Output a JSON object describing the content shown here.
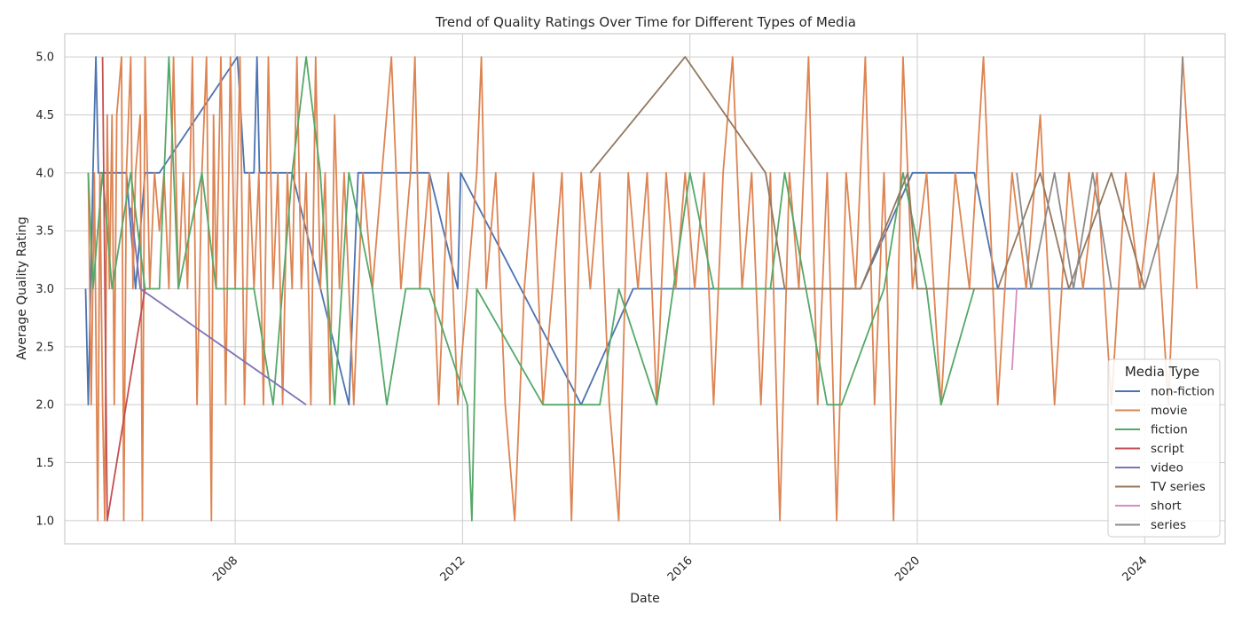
{
  "chart_data": {
    "type": "line",
    "title": "Trend of Quality Ratings Over Time for Different Types of Media",
    "xlabel": "Date",
    "ylabel": "Average Quality Rating",
    "xlim": [
      "2005-01-01",
      "2025-06-01"
    ],
    "ylim": [
      0.8,
      5.2
    ],
    "x_ticks": [
      "2008",
      "2012",
      "2016",
      "2020",
      "2024"
    ],
    "y_ticks": [
      "1.0",
      "1.5",
      "2.0",
      "2.5",
      "3.0",
      "3.5",
      "4.0",
      "4.5",
      "5.0"
    ],
    "grid": true,
    "legend": {
      "title": "Media Type",
      "placement": "bottom-right"
    },
    "series": [
      {
        "name": "non-fiction",
        "color": "#4c72b0",
        "points": [
          [
            "2005-05-15",
            3.0
          ],
          [
            "2005-06-01",
            2.0
          ],
          [
            "2005-07-01",
            4.0
          ],
          [
            "2005-07-20",
            5.0
          ],
          [
            "2005-08-05",
            4.0
          ],
          [
            "2005-11-01",
            4.0
          ],
          [
            "2006-02-01",
            4.0
          ],
          [
            "2006-04-01",
            3.0
          ],
          [
            "2006-06-01",
            4.0
          ],
          [
            "2006-09-01",
            4.0
          ],
          [
            "2008-01-15",
            5.0
          ],
          [
            "2008-03-01",
            4.0
          ],
          [
            "2008-05-01",
            4.0
          ],
          [
            "2008-05-20",
            5.0
          ],
          [
            "2008-06-05",
            4.0
          ],
          [
            "2009-01-01",
            4.0
          ],
          [
            "2010-01-01",
            2.0
          ],
          [
            "2010-03-01",
            4.0
          ],
          [
            "2011-06-01",
            4.0
          ],
          [
            "2011-12-01",
            3.0
          ],
          [
            "2011-12-20",
            4.0
          ],
          [
            "2014-02-01",
            2.0
          ],
          [
            "2015-01-01",
            3.0
          ],
          [
            "2019-01-01",
            3.0
          ],
          [
            "2019-12-01",
            4.0
          ],
          [
            "2020-01-01",
            4.0
          ],
          [
            "2021-01-01",
            4.0
          ],
          [
            "2021-06-01",
            3.0
          ],
          [
            "2024-01-01",
            3.0
          ]
        ]
      },
      {
        "name": "movie",
        "color": "#dd8452",
        "points": [
          [
            "2005-06-01",
            4.0
          ],
          [
            "2005-06-20",
            2.0
          ],
          [
            "2005-07-10",
            4.0
          ],
          [
            "2005-08-01",
            1.0
          ],
          [
            "2005-08-15",
            4.0
          ],
          [
            "2005-09-01",
            2.0
          ],
          [
            "2005-09-15",
            1.0
          ],
          [
            "2005-10-01",
            4.5
          ],
          [
            "2005-10-15",
            3.0
          ],
          [
            "2005-11-01",
            4.5
          ],
          [
            "2005-11-15",
            2.0
          ],
          [
            "2005-12-01",
            4.5
          ],
          [
            "2006-01-01",
            5.0
          ],
          [
            "2006-01-15",
            1.0
          ],
          [
            "2006-02-01",
            4.0
          ],
          [
            "2006-03-01",
            5.0
          ],
          [
            "2006-03-15",
            3.0
          ],
          [
            "2006-04-01",
            4.0
          ],
          [
            "2006-05-01",
            4.5
          ],
          [
            "2006-05-15",
            1.0
          ],
          [
            "2006-06-01",
            5.0
          ],
          [
            "2006-07-01",
            3.0
          ],
          [
            "2006-08-01",
            4.0
          ],
          [
            "2006-09-01",
            3.5
          ],
          [
            "2006-10-01",
            4.0
          ],
          [
            "2006-11-01",
            3.0
          ],
          [
            "2006-12-01",
            5.0
          ],
          [
            "2007-01-01",
            3.0
          ],
          [
            "2007-02-01",
            4.0
          ],
          [
            "2007-03-01",
            3.0
          ],
          [
            "2007-04-01",
            5.0
          ],
          [
            "2007-05-01",
            2.0
          ],
          [
            "2007-06-01",
            4.0
          ],
          [
            "2007-07-01",
            5.0
          ],
          [
            "2007-08-01",
            1.0
          ],
          [
            "2007-08-15",
            4.5
          ],
          [
            "2007-09-01",
            3.0
          ],
          [
            "2007-10-01",
            5.0
          ],
          [
            "2007-11-01",
            2.0
          ],
          [
            "2007-12-01",
            5.0
          ],
          [
            "2008-01-01",
            3.0
          ],
          [
            "2008-02-01",
            5.0
          ],
          [
            "2008-03-01",
            2.0
          ],
          [
            "2008-04-01",
            4.0
          ],
          [
            "2008-05-01",
            3.0
          ],
          [
            "2008-06-01",
            4.0
          ],
          [
            "2008-07-01",
            2.0
          ],
          [
            "2008-08-01",
            5.0
          ],
          [
            "2008-09-01",
            3.0
          ],
          [
            "2008-10-01",
            4.0
          ],
          [
            "2008-11-01",
            2.0
          ],
          [
            "2008-12-01",
            4.0
          ],
          [
            "2009-01-01",
            3.0
          ],
          [
            "2009-02-01",
            5.0
          ],
          [
            "2009-03-01",
            3.0
          ],
          [
            "2009-04-01",
            4.0
          ],
          [
            "2009-05-01",
            2.0
          ],
          [
            "2009-06-01",
            5.0
          ],
          [
            "2009-07-01",
            3.0
          ],
          [
            "2009-08-01",
            4.0
          ],
          [
            "2009-09-01",
            2.0
          ],
          [
            "2009-10-01",
            4.5
          ],
          [
            "2009-11-01",
            3.0
          ],
          [
            "2009-12-01",
            4.0
          ],
          [
            "2010-02-01",
            2.0
          ],
          [
            "2010-04-01",
            4.0
          ],
          [
            "2010-06-01",
            3.0
          ],
          [
            "2010-08-01",
            4.0
          ],
          [
            "2010-10-01",
            5.0
          ],
          [
            "2010-12-01",
            3.0
          ],
          [
            "2011-02-01",
            4.0
          ],
          [
            "2011-03-01",
            5.0
          ],
          [
            "2011-04-01",
            3.0
          ],
          [
            "2011-06-01",
            4.0
          ],
          [
            "2011-08-01",
            2.0
          ],
          [
            "2011-10-01",
            4.0
          ],
          [
            "2011-12-01",
            2.0
          ],
          [
            "2012-02-01",
            3.0
          ],
          [
            "2012-04-01",
            4.0
          ],
          [
            "2012-05-01",
            5.0
          ],
          [
            "2012-06-01",
            3.0
          ],
          [
            "2012-08-01",
            4.0
          ],
          [
            "2012-10-01",
            2.0
          ],
          [
            "2012-12-01",
            1.0
          ],
          [
            "2013-02-01",
            3.0
          ],
          [
            "2013-04-01",
            4.0
          ],
          [
            "2013-06-01",
            2.0
          ],
          [
            "2013-08-01",
            3.0
          ],
          [
            "2013-10-01",
            4.0
          ],
          [
            "2013-12-01",
            1.0
          ],
          [
            "2014-02-01",
            4.0
          ],
          [
            "2014-04-01",
            3.0
          ],
          [
            "2014-06-01",
            4.0
          ],
          [
            "2014-08-01",
            2.0
          ],
          [
            "2014-10-01",
            1.0
          ],
          [
            "2014-12-01",
            4.0
          ],
          [
            "2015-02-01",
            3.0
          ],
          [
            "2015-04-01",
            4.0
          ],
          [
            "2015-06-01",
            2.0
          ],
          [
            "2015-08-01",
            4.0
          ],
          [
            "2015-10-01",
            3.0
          ],
          [
            "2015-12-01",
            4.0
          ],
          [
            "2016-02-01",
            3.0
          ],
          [
            "2016-04-01",
            4.0
          ],
          [
            "2016-06-01",
            2.0
          ],
          [
            "2016-08-01",
            4.0
          ],
          [
            "2016-10-01",
            5.0
          ],
          [
            "2016-12-01",
            3.0
          ],
          [
            "2017-02-01",
            4.0
          ],
          [
            "2017-04-01",
            2.0
          ],
          [
            "2017-06-01",
            4.0
          ],
          [
            "2017-08-01",
            1.0
          ],
          [
            "2017-10-01",
            4.0
          ],
          [
            "2017-12-01",
            3.0
          ],
          [
            "2018-02-01",
            5.0
          ],
          [
            "2018-04-01",
            2.0
          ],
          [
            "2018-06-01",
            4.0
          ],
          [
            "2018-08-01",
            1.0
          ],
          [
            "2018-10-01",
            4.0
          ],
          [
            "2018-12-01",
            3.0
          ],
          [
            "2019-02-01",
            5.0
          ],
          [
            "2019-04-01",
            2.0
          ],
          [
            "2019-06-01",
            4.0
          ],
          [
            "2019-08-01",
            1.0
          ],
          [
            "2019-10-01",
            5.0
          ],
          [
            "2019-12-01",
            3.0
          ],
          [
            "2020-03-01",
            4.0
          ],
          [
            "2020-06-01",
            2.0
          ],
          [
            "2020-09-01",
            4.0
          ],
          [
            "2020-12-01",
            3.0
          ],
          [
            "2021-03-01",
            5.0
          ],
          [
            "2021-06-01",
            2.0
          ],
          [
            "2021-09-01",
            4.0
          ],
          [
            "2021-12-01",
            3.0
          ],
          [
            "2022-03-01",
            4.5
          ],
          [
            "2022-06-01",
            2.0
          ],
          [
            "2022-09-01",
            4.0
          ],
          [
            "2022-12-01",
            3.0
          ],
          [
            "2023-03-01",
            4.0
          ],
          [
            "2023-06-01",
            2.0
          ],
          [
            "2023-09-01",
            4.0
          ],
          [
            "2023-12-01",
            3.0
          ],
          [
            "2024-03-01",
            4.0
          ],
          [
            "2024-06-01",
            2.0
          ],
          [
            "2024-09-01",
            5.0
          ],
          [
            "2024-12-01",
            3.0
          ]
        ]
      },
      {
        "name": "fiction",
        "color": "#55a868",
        "points": [
          [
            "2005-06-01",
            4.0
          ],
          [
            "2005-07-01",
            3.0
          ],
          [
            "2005-09-01",
            4.0
          ],
          [
            "2005-11-01",
            3.0
          ],
          [
            "2006-03-01",
            4.0
          ],
          [
            "2006-06-01",
            3.0
          ],
          [
            "2006-09-01",
            3.0
          ],
          [
            "2006-11-01",
            5.0
          ],
          [
            "2007-01-01",
            3.0
          ],
          [
            "2007-06-01",
            4.0
          ],
          [
            "2007-09-01",
            3.0
          ],
          [
            "2008-05-01",
            3.0
          ],
          [
            "2008-09-01",
            2.0
          ],
          [
            "2009-01-01",
            4.0
          ],
          [
            "2009-04-01",
            5.0
          ],
          [
            "2009-07-01",
            4.0
          ],
          [
            "2009-10-01",
            2.0
          ],
          [
            "2010-01-01",
            4.0
          ],
          [
            "2010-06-01",
            3.0
          ],
          [
            "2010-09-01",
            2.0
          ],
          [
            "2011-01-01",
            3.0
          ],
          [
            "2011-06-01",
            3.0
          ],
          [
            "2012-02-01",
            2.0
          ],
          [
            "2012-03-01",
            1.0
          ],
          [
            "2012-04-01",
            3.0
          ],
          [
            "2013-06-01",
            2.0
          ],
          [
            "2014-06-01",
            2.0
          ],
          [
            "2014-10-01",
            3.0
          ],
          [
            "2015-06-01",
            2.0
          ],
          [
            "2016-01-01",
            4.0
          ],
          [
            "2016-06-01",
            3.0
          ],
          [
            "2017-06-01",
            3.0
          ],
          [
            "2017-09-01",
            4.0
          ],
          [
            "2018-06-01",
            2.0
          ],
          [
            "2018-09-01",
            2.0
          ],
          [
            "2019-06-01",
            3.0
          ],
          [
            "2019-10-01",
            4.0
          ],
          [
            "2020-03-01",
            3.0
          ],
          [
            "2020-06-01",
            2.0
          ],
          [
            "2021-01-01",
            3.0
          ]
        ]
      },
      {
        "name": "script",
        "color": "#c44e52",
        "points": [
          [
            "2005-09-01",
            5.0
          ],
          [
            "2005-10-01",
            1.0
          ],
          [
            "2006-06-01",
            3.0
          ]
        ]
      },
      {
        "name": "video",
        "color": "#8172b3",
        "points": [
          [
            "2006-03-01",
            3.7
          ],
          [
            "2006-05-01",
            3.0
          ],
          [
            "2009-04-01",
            2.0
          ]
        ]
      },
      {
        "name": "TV series",
        "color": "#937860",
        "points": [
          [
            "2014-04-01",
            4.0
          ],
          [
            "2015-12-01",
            5.0
          ],
          [
            "2017-05-01",
            4.0
          ],
          [
            "2017-09-01",
            3.0
          ],
          [
            "2019-01-01",
            3.0
          ],
          [
            "2019-11-01",
            4.0
          ],
          [
            "2020-01-01",
            3.0
          ],
          [
            "2021-06-01",
            3.0
          ],
          [
            "2022-03-01",
            4.0
          ],
          [
            "2022-09-01",
            3.0
          ],
          [
            "2023-06-01",
            4.0
          ],
          [
            "2024-01-01",
            3.0
          ]
        ]
      },
      {
        "name": "short",
        "color": "#da8bc3",
        "points": [
          [
            "2021-09-01",
            2.3
          ],
          [
            "2021-10-01",
            3.0
          ]
        ]
      },
      {
        "name": "series",
        "color": "#8c8c8c",
        "points": [
          [
            "2021-10-01",
            4.0
          ],
          [
            "2022-01-01",
            3.0
          ],
          [
            "2022-06-01",
            4.0
          ],
          [
            "2022-10-01",
            3.0
          ],
          [
            "2023-02-01",
            4.0
          ],
          [
            "2023-06-01",
            3.0
          ],
          [
            "2024-01-01",
            3.0
          ],
          [
            "2024-08-01",
            4.0
          ],
          [
            "2024-09-01",
            5.0
          ]
        ]
      }
    ]
  }
}
